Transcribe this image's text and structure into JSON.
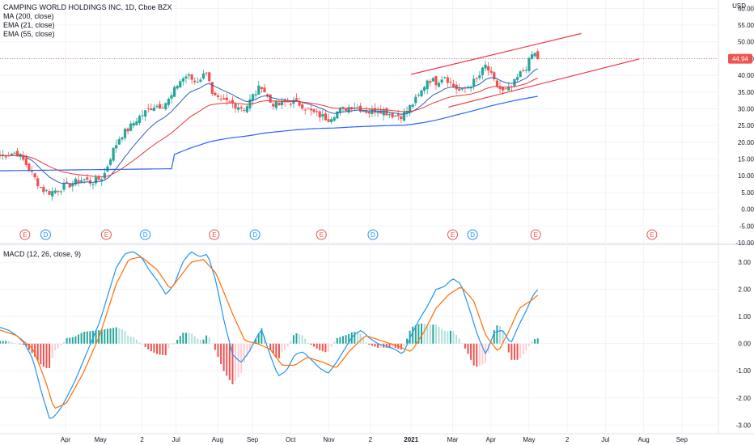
{
  "header": {
    "title": "CAMPING WORLD HOLDINGS INC, 1D, Cboe BZX",
    "indicators": [
      "MA (200, close)",
      "EMA (21, close)",
      "EMA (55, close)"
    ],
    "currency": "USD",
    "last_price": "44.94"
  },
  "macd_panel": {
    "label": "MACD (12, 26, close, 9)"
  },
  "colors": {
    "up": "#26a69a",
    "down": "#ef5350",
    "ma200": "#2962ff",
    "ema21": "#2f5fbd",
    "ema55": "#e53935",
    "macd": "#2196f3",
    "signal": "#ff6d00",
    "trendline": "#f23645",
    "hist_up": "#26a69a",
    "hist_up_weak": "#b2dfdb",
    "hist_down": "#ef5350",
    "hist_down_weak": "#ffcdd2"
  },
  "chart_data": [
    {
      "type": "candlestick",
      "title": "CAMPING WORLD HOLDINGS INC, 1D, Cboe BZX",
      "y_axis": {
        "unit": "USD",
        "ylim": [
          -10,
          62.5
        ],
        "ticks": [
          "60.00",
          "55.00",
          "50.00",
          "45.00",
          "40.00",
          "35.00",
          "30.00",
          "25.00",
          "20.00",
          "15.00",
          "10.00",
          "5.00",
          "0.00",
          "-5.00",
          "-10.00"
        ]
      },
      "x_axis": {
        "ticks": [
          {
            "label": "Apr",
            "day": 79
          },
          {
            "label": "May",
            "day": 121
          },
          {
            "label": "2",
            "day": 171
          },
          {
            "label": "Jul",
            "day": 212
          },
          {
            "label": "Aug",
            "day": 262
          },
          {
            "label": "Sep",
            "day": 304
          },
          {
            "label": "Oct",
            "day": 350
          },
          {
            "label": "Nov",
            "day": 396
          },
          {
            "label": "2",
            "day": 446
          },
          {
            "label": "2021",
            "day": 495,
            "bold": true
          },
          {
            "label": "Mar",
            "day": 545
          },
          {
            "label": "Apr",
            "day": 591
          },
          {
            "label": "May",
            "day": 637
          },
          {
            "label": "2",
            "day": 683
          },
          {
            "label": "Jul",
            "day": 729
          },
          {
            "label": "Aug",
            "day": 775
          },
          {
            "label": "Sep",
            "day": 821
          }
        ],
        "day_range": [
          0,
          865
        ]
      },
      "price_anchors": [
        [
          0,
          16
        ],
        [
          20,
          17
        ],
        [
          30,
          14
        ],
        [
          40,
          10
        ],
        [
          50,
          6
        ],
        [
          60,
          5
        ],
        [
          70,
          6
        ],
        [
          80,
          7
        ],
        [
          90,
          8
        ],
        [
          100,
          9
        ],
        [
          110,
          8
        ],
        [
          120,
          9
        ],
        [
          125,
          10
        ],
        [
          135,
          17
        ],
        [
          145,
          22
        ],
        [
          155,
          24
        ],
        [
          165,
          27
        ],
        [
          175,
          29
        ],
        [
          185,
          31
        ],
        [
          195,
          31
        ],
        [
          205,
          33
        ],
        [
          215,
          38
        ],
        [
          225,
          40
        ],
        [
          235,
          38
        ],
        [
          245,
          40
        ],
        [
          250,
          42
        ],
        [
          255,
          34
        ],
        [
          265,
          32
        ],
        [
          275,
          32
        ],
        [
          285,
          31
        ],
        [
          295,
          30
        ],
        [
          305,
          34
        ],
        [
          315,
          37
        ],
        [
          325,
          32
        ],
        [
          335,
          31
        ],
        [
          345,
          32
        ],
        [
          355,
          32
        ],
        [
          365,
          31
        ],
        [
          375,
          29
        ],
        [
          385,
          28
        ],
        [
          395,
          27
        ],
        [
          405,
          29
        ],
        [
          415,
          30
        ],
        [
          425,
          31
        ],
        [
          435,
          30
        ],
        [
          445,
          29
        ],
        [
          455,
          30
        ],
        [
          465,
          29
        ],
        [
          475,
          28
        ],
        [
          485,
          28
        ],
        [
          495,
          31
        ],
        [
          505,
          34
        ],
        [
          515,
          39
        ],
        [
          525,
          38
        ],
        [
          535,
          40
        ],
        [
          545,
          37
        ],
        [
          555,
          35
        ],
        [
          565,
          37
        ],
        [
          575,
          39
        ],
        [
          585,
          43
        ],
        [
          595,
          38
        ],
        [
          605,
          35
        ],
        [
          615,
          36
        ],
        [
          625,
          40
        ],
        [
          635,
          43
        ],
        [
          642,
          47
        ],
        [
          648,
          44.94
        ]
      ],
      "overlays": [
        "MA (200, close)",
        "EMA (21, close)",
        "EMA (55, close)"
      ],
      "trendlines": [
        {
          "from": [
            495,
            40.3
          ],
          "to": [
            700,
            52.5
          ]
        },
        {
          "from": [
            540,
            30.5
          ],
          "to": [
            770,
            44.9
          ]
        }
      ],
      "last_price": 44.94,
      "events": [
        {
          "type": "E",
          "day": 30
        },
        {
          "type": "D",
          "day": 55
        },
        {
          "type": "E",
          "day": 128
        },
        {
          "type": "D",
          "day": 175
        },
        {
          "type": "E",
          "day": 258
        },
        {
          "type": "D",
          "day": 307
        },
        {
          "type": "E",
          "day": 387
        },
        {
          "type": "D",
          "day": 449
        },
        {
          "type": "E",
          "day": 545
        },
        {
          "type": "D",
          "day": 569
        },
        {
          "type": "E",
          "day": 645
        },
        {
          "type": "E",
          "day": 785
        }
      ]
    },
    {
      "type": "macd",
      "title": "MACD (12, 26, close, 9)",
      "y_axis": {
        "ylim": [
          -3.2,
          3.6
        ],
        "ticks": [
          "3.00",
          "2.00",
          "1.00",
          "0.00",
          "-1.00",
          "-2.00",
          "-3.00"
        ]
      },
      "macd_anchors": [
        [
          0,
          0.6
        ],
        [
          10,
          0.5
        ],
        [
          20,
          0.3
        ],
        [
          30,
          0
        ],
        [
          40,
          -0.6
        ],
        [
          50,
          -1.8
        ],
        [
          60,
          -2.8
        ],
        [
          65,
          -2.7
        ],
        [
          75,
          -2.3
        ],
        [
          90,
          -1.4
        ],
        [
          105,
          -0.3
        ],
        [
          120,
          0.8
        ],
        [
          130,
          1.8
        ],
        [
          140,
          2.8
        ],
        [
          150,
          3.3
        ],
        [
          160,
          3.4
        ],
        [
          170,
          3.2
        ],
        [
          180,
          2.7
        ],
        [
          190,
          2.3
        ],
        [
          200,
          1.8
        ],
        [
          210,
          2.2
        ],
        [
          220,
          3.0
        ],
        [
          230,
          3.4
        ],
        [
          240,
          3.2
        ],
        [
          250,
          3.3
        ],
        [
          260,
          2.3
        ],
        [
          270,
          0.8
        ],
        [
          280,
          -0.4
        ],
        [
          290,
          -0.7
        ],
        [
          300,
          -0.3
        ],
        [
          310,
          0.3
        ],
        [
          315,
          0.5
        ],
        [
          325,
          -0.4
        ],
        [
          335,
          -1.2
        ],
        [
          345,
          -1.0
        ],
        [
          355,
          -0.4
        ],
        [
          365,
          -0.3
        ],
        [
          375,
          -0.6
        ],
        [
          385,
          -0.9
        ],
        [
          395,
          -1.1
        ],
        [
          405,
          -0.7
        ],
        [
          415,
          -0.2
        ],
        [
          425,
          0.3
        ],
        [
          435,
          0.5
        ],
        [
          445,
          0.2
        ],
        [
          455,
          0.0
        ],
        [
          465,
          -0.1
        ],
        [
          475,
          -0.2
        ],
        [
          485,
          -0.4
        ],
        [
          495,
          0.3
        ],
        [
          505,
          0.9
        ],
        [
          515,
          1.4
        ],
        [
          525,
          2.0
        ],
        [
          535,
          2.1
        ],
        [
          545,
          2.4
        ],
        [
          555,
          2.2
        ],
        [
          565,
          1.3
        ],
        [
          575,
          0.3
        ],
        [
          585,
          -0.4
        ],
        [
          595,
          0.4
        ],
        [
          605,
          0.5
        ],
        [
          615,
          0.0
        ],
        [
          625,
          0.7
        ],
        [
          635,
          1.3
        ],
        [
          642,
          1.8
        ],
        [
          648,
          2.0
        ]
      ],
      "signal_anchors": [
        [
          0,
          0.5
        ],
        [
          20,
          0.3
        ],
        [
          40,
          -0.2
        ],
        [
          55,
          -1.4
        ],
        [
          65,
          -2.4
        ],
        [
          80,
          -2.2
        ],
        [
          100,
          -1.1
        ],
        [
          120,
          0.3
        ],
        [
          140,
          2.2
        ],
        [
          155,
          3.1
        ],
        [
          170,
          3.2
        ],
        [
          190,
          2.7
        ],
        [
          205,
          2.0
        ],
        [
          215,
          2.4
        ],
        [
          230,
          3.0
        ],
        [
          245,
          3.1
        ],
        [
          260,
          2.6
        ],
        [
          280,
          1.1
        ],
        [
          295,
          0.1
        ],
        [
          310,
          0.0
        ],
        [
          325,
          -0.2
        ],
        [
          340,
          -0.8
        ],
        [
          355,
          -0.8
        ],
        [
          370,
          -0.5
        ],
        [
          390,
          -0.7
        ],
        [
          405,
          -0.9
        ],
        [
          420,
          -0.3
        ],
        [
          440,
          0.3
        ],
        [
          460,
          0.1
        ],
        [
          480,
          -0.1
        ],
        [
          495,
          -0.3
        ],
        [
          510,
          0.4
        ],
        [
          525,
          1.3
        ],
        [
          540,
          1.8
        ],
        [
          555,
          2.1
        ],
        [
          570,
          1.6
        ],
        [
          585,
          0.3
        ],
        [
          600,
          -0.3
        ],
        [
          615,
          0.6
        ],
        [
          625,
          1.3
        ],
        [
          640,
          1.6
        ],
        [
          648,
          1.8
        ]
      ]
    }
  ]
}
